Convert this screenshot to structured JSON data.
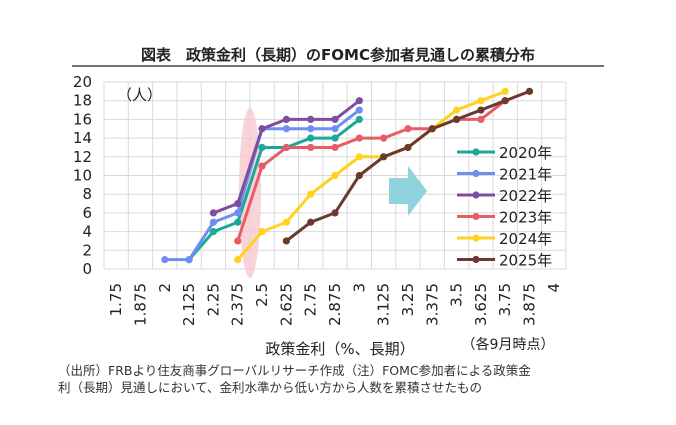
{
  "chart_data": {
    "type": "line",
    "title": "図表　政策金利（長期）のFOMC参加者見通しの累積分布",
    "xlabel": "政策金利（%、長期）",
    "ylabel": "（人）",
    "x_note": "（各9月時点）",
    "categories": [
      "1.75",
      "1.875",
      "2",
      "2.125",
      "2.25",
      "2.375",
      "2.5",
      "2.625",
      "2.75",
      "2.875",
      "3",
      "3.125",
      "3.25",
      "3.375",
      "3.5",
      "3.625",
      "3.75",
      "3.875",
      "4"
    ],
    "ylim": [
      0,
      20
    ],
    "yticks": [
      "0",
      "2",
      "4",
      "6",
      "8",
      "10",
      "12",
      "14",
      "16",
      "18",
      "20"
    ],
    "grid": true,
    "legend_position": "right",
    "series": [
      {
        "name": "2020年",
        "color": "#1aa899",
        "x": [
          "2.125",
          "2.25",
          "2.375",
          "2.5",
          "2.625",
          "2.75",
          "2.875",
          "3"
        ],
        "values": [
          1,
          4,
          5,
          13,
          13,
          14,
          14,
          16
        ]
      },
      {
        "name": "2021年",
        "color": "#6f8ff0",
        "x": [
          "2",
          "2.125",
          "2.25",
          "2.375",
          "2.5",
          "2.625",
          "2.75",
          "2.875",
          "3"
        ],
        "values": [
          1,
          1,
          5,
          6,
          15,
          15,
          15,
          15,
          17
        ]
      },
      {
        "name": "2022年",
        "color": "#7c4ea0",
        "x": [
          "2.25",
          "2.375",
          "2.5",
          "2.625",
          "2.75",
          "2.875",
          "3"
        ],
        "values": [
          6,
          7,
          15,
          16,
          16,
          16,
          18
        ]
      },
      {
        "name": "2023年",
        "color": "#e85c66",
        "x": [
          "2.375",
          "2.5",
          "2.625",
          "2.75",
          "2.875",
          "3",
          "3.125",
          "3.25",
          "3.375",
          "3.5",
          "3.625",
          "3.75"
        ],
        "values": [
          3,
          11,
          13,
          13,
          13,
          14,
          14,
          15,
          15,
          16,
          16,
          18
        ]
      },
      {
        "name": "2024年",
        "color": "#ffd21f",
        "x": [
          "2.375",
          "2.5",
          "2.625",
          "2.75",
          "2.875",
          "3",
          "3.125",
          "3.25",
          "3.375",
          "3.5",
          "3.625",
          "3.75"
        ],
        "values": [
          1,
          4,
          5,
          8,
          10,
          12,
          12,
          13,
          15,
          17,
          18,
          19
        ]
      },
      {
        "name": "2025年",
        "color": "#6b3a2f",
        "x": [
          "2.625",
          "2.75",
          "2.875",
          "3",
          "3.125",
          "3.25",
          "3.375",
          "3.5",
          "3.625",
          "3.75",
          "3.875"
        ],
        "values": [
          3,
          5,
          6,
          10,
          12,
          13,
          15,
          16,
          17,
          18,
          19
        ]
      }
    ],
    "highlight_band_x": "2.5",
    "arrow_color": "#8fd3df"
  },
  "note": {
    "line1": "（出所）FRBより住友商事グローバルリサーチ作成（注）FOMC参加者による政策金",
    "line2": "利（長期）見通しにおいて、金利水準から低い方から人数を累積させたもの"
  }
}
